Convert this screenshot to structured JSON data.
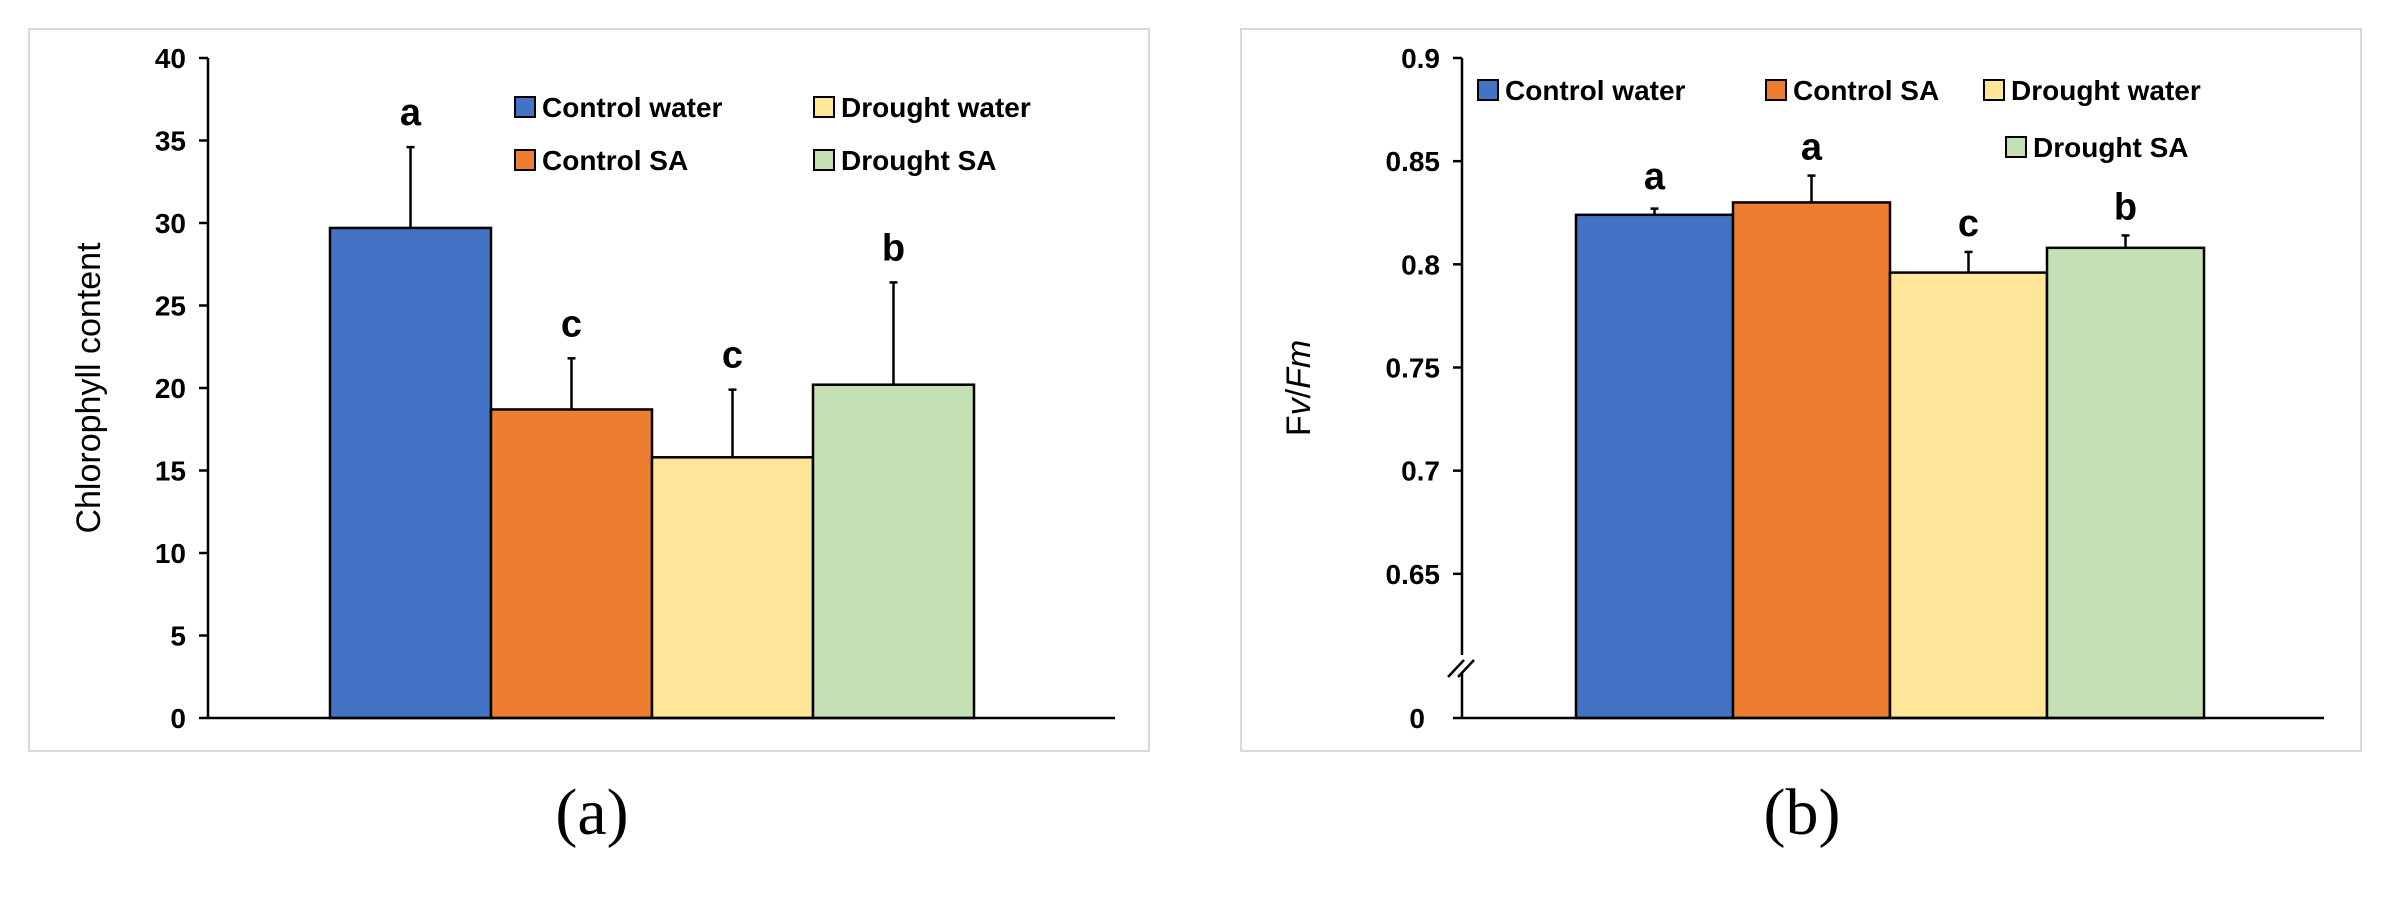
{
  "chart_data": [
    {
      "panel": "(a)",
      "type": "bar",
      "ylabel": "Chlorophyll  content",
      "xlabel": "",
      "ylim": [
        0,
        40
      ],
      "yticks": [
        0,
        5,
        10,
        15,
        20,
        25,
        30,
        35,
        40
      ],
      "series": [
        {
          "name": "Control water",
          "color": "#4472C4",
          "value": 29.7,
          "error": 4.9,
          "letter": "a"
        },
        {
          "name": "Control SA",
          "color": "#ED7D31",
          "value": 18.7,
          "error": 3.1,
          "letter": "c"
        },
        {
          "name": "Drought water",
          "color": "#FFE699",
          "value": 15.8,
          "error": 4.1,
          "letter": "c"
        },
        {
          "name": "Drought SA",
          "color": "#C5E0B4",
          "value": 20.2,
          "error": 6.2,
          "letter": "b"
        }
      ],
      "legend": [
        "Control water",
        "Drought water",
        "Control SA",
        "Drought SA"
      ]
    },
    {
      "panel": "(b)",
      "type": "bar",
      "ylabel": "Fv/Fm",
      "ylabel_parts": [
        "Fv",
        "/",
        "Fm"
      ],
      "xlabel": "",
      "ylim": [
        0.6,
        0.9
      ],
      "axis_break": true,
      "yticks": [
        0.65,
        0.7,
        0.75,
        0.8,
        0.85,
        0.9
      ],
      "ytick_labels": [
        "0.65",
        "0.7",
        "0.75",
        "0.8",
        "0.85",
        "0.9"
      ],
      "bottom_label": "0",
      "series": [
        {
          "name": "Control water",
          "color": "#4472C4",
          "value": 0.824,
          "error": 0.003,
          "letter": "a"
        },
        {
          "name": "Control SA",
          "color": "#ED7D31",
          "value": 0.83,
          "error": 0.013,
          "letter": "a"
        },
        {
          "name": "Drought water",
          "color": "#FFE699",
          "value": 0.796,
          "error": 0.01,
          "letter": "c"
        },
        {
          "name": "Drought SA",
          "color": "#C5E0B4",
          "value": 0.808,
          "error": 0.006,
          "letter": "b"
        }
      ],
      "legend": [
        "Control water",
        "Control SA",
        "Drought water",
        "Drought SA"
      ]
    }
  ]
}
